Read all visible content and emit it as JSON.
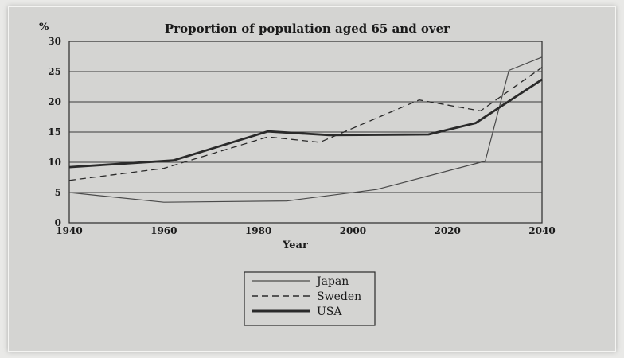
{
  "chart_data": {
    "type": "line",
    "title": "Proportion of population aged 65 and over",
    "ylabel": "%",
    "xlabel": "Year",
    "xlim": [
      1940,
      2040
    ],
    "ylim": [
      0,
      30
    ],
    "x_ticks": [
      "1940",
      "1960",
      "1980",
      "2000",
      "2020",
      "2040"
    ],
    "y_ticks": [
      "0",
      "5",
      "10",
      "15",
      "20",
      "25",
      "30"
    ],
    "grid": "horizontal",
    "legend_position": "bottom-center",
    "series": [
      {
        "name": "Japan",
        "style": "solid-thin",
        "points": [
          [
            1940,
            5
          ],
          [
            1960,
            3.4
          ],
          [
            1986,
            3.6
          ],
          [
            2005,
            5.5
          ],
          [
            2028,
            10.2
          ],
          [
            2033,
            25.2
          ],
          [
            2040,
            27.4
          ]
        ]
      },
      {
        "name": "Sweden",
        "style": "dashed",
        "points": [
          [
            1940,
            7
          ],
          [
            1960,
            9
          ],
          [
            1982,
            14.2
          ],
          [
            1993,
            13.3
          ],
          [
            2014,
            20.3
          ],
          [
            2027,
            18.5
          ],
          [
            2040,
            25.7
          ]
        ]
      },
      {
        "name": "USA",
        "style": "solid-thick",
        "points": [
          [
            1940,
            9.2
          ],
          [
            1962,
            10.3
          ],
          [
            1982,
            15.1
          ],
          [
            1995,
            14.5
          ],
          [
            2016,
            14.6
          ],
          [
            2026,
            16.5
          ],
          [
            2040,
            23.7
          ]
        ]
      }
    ]
  }
}
